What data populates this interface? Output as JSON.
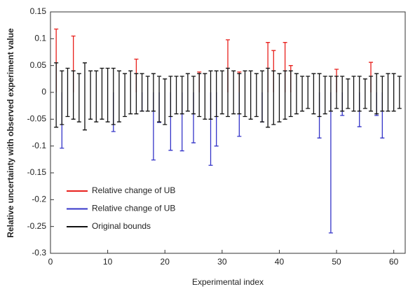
{
  "chart_data": {
    "type": "errorbar",
    "x_label": "Experimental index",
    "y_label": "Relative uncertainty with observed experiment value",
    "xlim": [
      0,
      62
    ],
    "xticks": [
      0,
      10,
      20,
      30,
      40,
      50,
      60
    ],
    "ylim": [
      -0.3,
      0.15
    ],
    "yticks": [
      -0.3,
      -0.25,
      -0.2,
      -0.15,
      -0.1,
      -0.05,
      0,
      0.05,
      0.1,
      0.15
    ],
    "legend_position": "lower left",
    "series": [
      {
        "name": "Relative change of UB",
        "color": "#e8201c",
        "x": [
          1,
          4,
          15,
          26,
          31,
          33,
          38,
          39,
          41,
          42,
          50,
          56
        ],
        "values": [
          0.118,
          0.105,
          0.062,
          0.038,
          0.098,
          0.038,
          0.093,
          0.078,
          0.093,
          0.05,
          0.043,
          0.056
        ]
      },
      {
        "name": "Relative change of UB",
        "color": "#3434c8",
        "x": [
          2,
          11,
          16,
          18,
          19,
          21,
          23,
          25,
          28,
          29,
          33,
          37,
          47,
          49,
          51,
          54,
          57,
          58
        ],
        "values": [
          -0.104,
          -0.073,
          -0.035,
          -0.126,
          -0.056,
          -0.108,
          -0.109,
          -0.094,
          -0.136,
          -0.1,
          -0.082,
          -0.055,
          -0.085,
          -0.262,
          -0.043,
          -0.064,
          -0.043,
          -0.085
        ]
      },
      {
        "name": "Original bounds",
        "color": "#111111",
        "x": [
          1,
          2,
          3,
          4,
          5,
          6,
          7,
          8,
          9,
          10,
          11,
          12,
          13,
          14,
          15,
          16,
          17,
          18,
          19,
          20,
          21,
          22,
          23,
          24,
          25,
          26,
          27,
          28,
          29,
          30,
          31,
          32,
          33,
          34,
          35,
          36,
          37,
          38,
          39,
          40,
          41,
          42,
          43,
          44,
          45,
          46,
          47,
          48,
          49,
          50,
          51,
          52,
          53,
          54,
          55,
          56,
          57,
          58,
          59,
          60,
          61
        ],
        "upper": [
          0.055,
          0.04,
          0.045,
          0.04,
          0.035,
          0.055,
          0.04,
          0.04,
          0.045,
          0.045,
          0.045,
          0.04,
          0.035,
          0.04,
          0.035,
          0.035,
          0.03,
          0.035,
          0.03,
          0.025,
          0.03,
          0.03,
          0.03,
          0.035,
          0.03,
          0.035,
          0.035,
          0.04,
          0.04,
          0.04,
          0.045,
          0.04,
          0.035,
          0.04,
          0.04,
          0.035,
          0.04,
          0.045,
          0.04,
          0.035,
          0.04,
          0.04,
          0.035,
          0.03,
          0.03,
          0.035,
          0.035,
          0.03,
          0.03,
          0.03,
          0.03,
          0.025,
          0.03,
          0.03,
          0.025,
          0.03,
          0.035,
          0.03,
          0.035,
          0.035,
          0.03
        ],
        "lower": [
          -0.065,
          -0.06,
          -0.045,
          -0.05,
          -0.055,
          -0.07,
          -0.05,
          -0.055,
          -0.05,
          -0.055,
          -0.06,
          -0.055,
          -0.045,
          -0.04,
          -0.04,
          -0.035,
          -0.035,
          -0.035,
          -0.055,
          -0.06,
          -0.045,
          -0.04,
          -0.04,
          -0.035,
          -0.04,
          -0.045,
          -0.05,
          -0.05,
          -0.045,
          -0.04,
          -0.045,
          -0.04,
          -0.04,
          -0.045,
          -0.05,
          -0.045,
          -0.055,
          -0.065,
          -0.06,
          -0.055,
          -0.05,
          -0.045,
          -0.04,
          -0.035,
          -0.03,
          -0.04,
          -0.045,
          -0.04,
          -0.035,
          -0.03,
          -0.035,
          -0.03,
          -0.035,
          -0.035,
          -0.03,
          -0.035,
          -0.04,
          -0.035,
          -0.035,
          -0.035,
          -0.03
        ]
      }
    ]
  }
}
